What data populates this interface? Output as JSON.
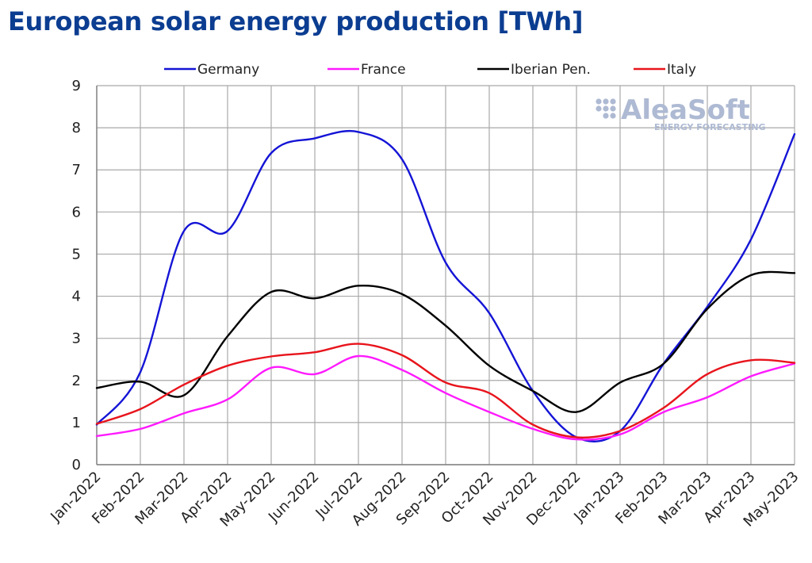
{
  "title": "European solar energy production [TWh]",
  "watermark": {
    "brand": "AleaSoft",
    "sub": "ENERGY FORECASTING",
    "color": "#aebad3"
  },
  "chart_data": {
    "type": "line",
    "title": "European solar energy production [TWh]",
    "xlabel": "",
    "ylabel": "",
    "ylim": [
      0,
      9
    ],
    "yticks": [
      0,
      1,
      2,
      3,
      4,
      5,
      6,
      7,
      8,
      9
    ],
    "grid": true,
    "legend": "top",
    "categories": [
      "Jan-2022",
      "Feb-2022",
      "Mar-2022",
      "Apr-2022",
      "May-2022",
      "Jun-2022",
      "Jul-2022",
      "Aug-2022",
      "Sep-2022",
      "Oct-2022",
      "Nov-2022",
      "Dec-2022",
      "Jan-2023",
      "Feb-2023",
      "Mar-2023",
      "Apr-2023",
      "May-2023"
    ],
    "series": [
      {
        "name": "Germany",
        "color": "#1414d6",
        "values": [
          0.95,
          2.2,
          5.55,
          5.55,
          7.4,
          7.75,
          7.9,
          7.25,
          4.8,
          3.6,
          1.75,
          0.65,
          0.8,
          2.4,
          3.75,
          5.35,
          7.85
        ]
      },
      {
        "name": "France",
        "color": "#ff1aff",
        "values": [
          0.68,
          0.85,
          1.22,
          1.55,
          2.3,
          2.15,
          2.58,
          2.25,
          1.7,
          1.25,
          0.85,
          0.6,
          0.72,
          1.25,
          1.6,
          2.1,
          2.4
        ]
      },
      {
        "name": "Iberian Pen.",
        "color": "#000000",
        "values": [
          1.82,
          1.97,
          1.65,
          3.05,
          4.1,
          3.95,
          4.25,
          4.05,
          3.3,
          2.35,
          1.75,
          1.25,
          1.95,
          2.4,
          3.7,
          4.5,
          4.55
        ]
      },
      {
        "name": "Italy",
        "color": "#e8141c",
        "values": [
          0.97,
          1.32,
          1.9,
          2.35,
          2.57,
          2.67,
          2.87,
          2.6,
          1.95,
          1.7,
          0.95,
          0.65,
          0.8,
          1.35,
          2.15,
          2.48,
          2.42
        ]
      }
    ]
  }
}
